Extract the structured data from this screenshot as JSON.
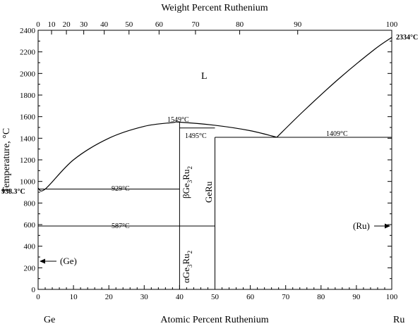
{
  "chart_data": {
    "type": "phase-diagram",
    "title": "",
    "top_axis_title": "Weight Percent Ruthenium",
    "bottom_axis_title": "Atomic Percent Ruthenium",
    "ylabel": "Temperature, °C",
    "left_element": "Ge",
    "right_element": "Ru",
    "xlim": [
      0,
      100
    ],
    "ylim": [
      0,
      2400
    ],
    "x_ticks": [
      0,
      10,
      20,
      30,
      40,
      50,
      60,
      70,
      80,
      90,
      100
    ],
    "y_ticks": [
      0,
      200,
      400,
      600,
      800,
      1000,
      1200,
      1400,
      1600,
      1800,
      2000,
      2200,
      2400
    ],
    "wt_ticks": [
      0,
      10,
      20,
      30,
      40,
      50,
      60,
      70,
      80,
      90,
      100
    ],
    "wt_tick_positions_at": [
      0,
      3.8,
      8.0,
      12.9,
      18.7,
      25.7,
      34.2,
      44.5,
      57.0,
      73.4,
      100
    ],
    "labels": {
      "liquid": "L",
      "ge_melt": "938.3°C",
      "ru_melt": "2334°C",
      "t929": "929°C",
      "t587": "587°C",
      "t1549": "1549°C",
      "t1495": "1495°C",
      "t1409": "1409°C",
      "ge_phase": "(Ge)",
      "ru_phase": "(Ru)",
      "beta_prefix": "β",
      "alpha_prefix": "α",
      "ge": "Ge",
      "ru": "Ru",
      "sub3": "3",
      "sub2": "2",
      "geru": "GeRu"
    },
    "liquidus_left": [
      [
        0,
        938.3
      ],
      [
        2,
        929
      ],
      [
        10,
        1200
      ],
      [
        20,
        1400
      ],
      [
        30,
        1510
      ],
      [
        38,
        1545
      ],
      [
        40,
        1549
      ],
      [
        50,
        1520
      ],
      [
        60,
        1470
      ],
      [
        67.5,
        1409
      ]
    ],
    "liquidus_right": [
      [
        67.5,
        1409
      ],
      [
        75,
        1650
      ],
      [
        85,
        1950
      ],
      [
        95,
        2220
      ],
      [
        100,
        2334
      ]
    ],
    "isotherms": [
      {
        "x1": 0,
        "x2": 40,
        "y": 929
      },
      {
        "x1": 0,
        "x2": 50,
        "y": 587
      },
      {
        "x1": 40,
        "x2": 50,
        "y": 1495
      },
      {
        "x1": 50,
        "x2": 100,
        "y": 1409
      }
    ],
    "compound_lines": [
      {
        "x": 40,
        "y1": 0,
        "y2": 1549
      },
      {
        "x": 50,
        "y1": 0,
        "y2": 1409
      }
    ]
  }
}
